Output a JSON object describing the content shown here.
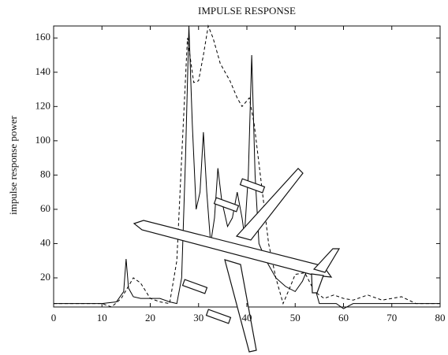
{
  "chart_data": {
    "type": "line",
    "title": "IMPULSE RESPONSE",
    "ylabel": "impulse response power",
    "xlim": [
      0,
      80
    ],
    "ylim": [
      3,
      167
    ],
    "xticks": [
      0,
      10,
      20,
      30,
      40,
      50,
      60,
      70,
      80
    ],
    "yticks": [
      20,
      40,
      60,
      80,
      100,
      120,
      140,
      160
    ],
    "grid": false,
    "series": [
      {
        "color": "#000000",
        "dash": false,
        "x": [
          0,
          5,
          10,
          13,
          14.5,
          15,
          15.5,
          16.5,
          18,
          20,
          22,
          24,
          25.5,
          26.5,
          27.3,
          28,
          28.7,
          29.5,
          30.3,
          31,
          31.7,
          32.5,
          33.3,
          34,
          34.8,
          36,
          37,
          38,
          39,
          39.5,
          40.3,
          41,
          41.7,
          42.5,
          44,
          46,
          48,
          50,
          51.5,
          53,
          54,
          55,
          57,
          58.5,
          60,
          62,
          70,
          80
        ],
        "values": [
          5,
          5,
          5,
          6,
          12,
          31,
          14,
          9,
          8,
          8,
          8,
          6,
          5,
          20,
          90,
          167,
          110,
          60,
          70,
          105,
          70,
          40,
          55,
          84,
          65,
          50,
          55,
          70,
          55,
          45,
          80,
          150,
          80,
          40,
          30,
          20,
          15,
          12,
          18,
          28,
          15,
          5,
          5,
          5,
          2,
          5,
          5,
          5
        ]
      },
      {
        "color": "#000000",
        "dash": true,
        "x": [
          0,
          5,
          10,
          12,
          14,
          16.5,
          18,
          20,
          22,
          24,
          25.5,
          26.5,
          27.7,
          29,
          30,
          31,
          32,
          33,
          34.5,
          36.5,
          38,
          39,
          40.5,
          41.5,
          43,
          44.5,
          46,
          47.5,
          49,
          50,
          52,
          54,
          56,
          58,
          60,
          62,
          65,
          68,
          72,
          75,
          80
        ],
        "values": [
          5,
          5,
          5,
          3,
          8,
          20,
          17,
          8,
          6,
          5,
          30,
          90,
          160,
          134,
          135,
          150,
          167,
          160,
          145,
          135,
          125,
          120,
          125,
          110,
          75,
          40,
          20,
          5,
          15,
          22,
          23,
          12,
          8,
          10,
          8,
          7,
          10,
          7,
          9,
          5,
          5
        ]
      }
    ]
  }
}
